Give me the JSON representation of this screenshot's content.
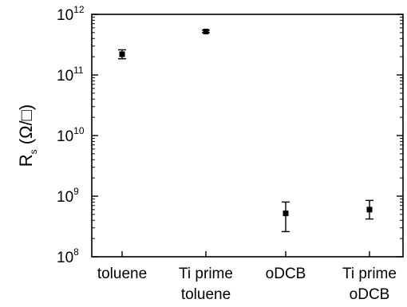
{
  "chart_data": {
    "type": "scatter",
    "categories": [
      "toluene",
      "Ti prime\ntoluene",
      "oDCB",
      "Ti prime\noDCB"
    ],
    "ylabel_main": "R",
    "ylabel_sub": "s",
    "ylabel_unit": "(Ω/□)",
    "yscale": "log",
    "ylim": [
      100000000.0,
      1000000000000.0
    ],
    "ytick_base": "10",
    "ytick_exponents": [
      "8",
      "9",
      "10",
      "11",
      "12"
    ],
    "series": [
      {
        "values": [
          220000000000.0,
          520000000000.0,
          520000000.0,
          600000000.0
        ],
        "err_low": [
          185000000000.0,
          500000000000.0,
          260000000.0,
          420000000.0
        ],
        "err_high": [
          260000000000.0,
          550000000000.0,
          800000000.0,
          850000000.0
        ]
      }
    ],
    "grid": false,
    "legend": "none"
  }
}
